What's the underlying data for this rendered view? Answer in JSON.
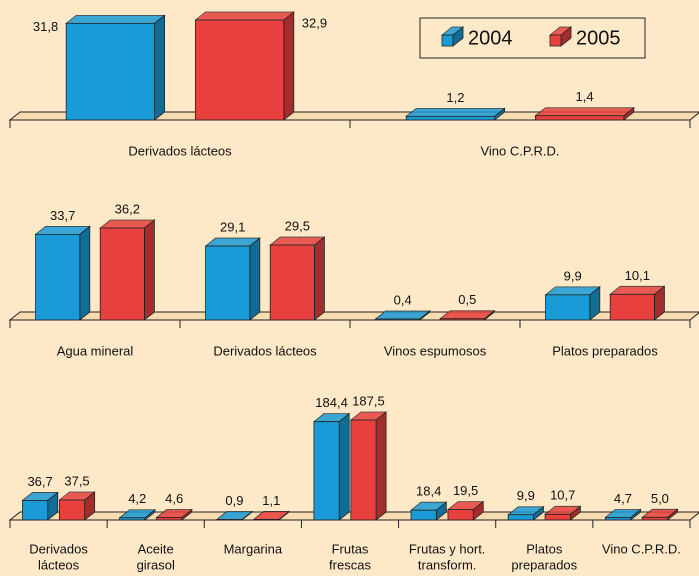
{
  "chart_data": [
    {
      "type": "bar3d",
      "categories": [
        [
          "Derivados lácteos"
        ],
        [
          "Vino C.P.R.D."
        ]
      ],
      "series": [
        {
          "name": "2004",
          "color": "#1a9ad6",
          "values": [
            31.8,
            1.2
          ],
          "value_labels": [
            "31,8",
            "1,2"
          ]
        },
        {
          "name": "2005",
          "color": "#e8403f",
          "values": [
            32.9,
            1.4
          ],
          "value_labels": [
            "32,9",
            "1,4"
          ]
        }
      ],
      "legend": "top-right"
    },
    {
      "type": "bar3d",
      "categories": [
        [
          "Agua mineral"
        ],
        [
          "Derivados lácteos"
        ],
        [
          "Vinos espumosos"
        ],
        [
          "Platos preparados"
        ]
      ],
      "series": [
        {
          "name": "2004",
          "color": "#1a9ad6",
          "values": [
            33.7,
            29.1,
            0.4,
            9.9
          ],
          "value_labels": [
            "33,7",
            "29,1",
            "0,4",
            "9,9"
          ]
        },
        {
          "name": "2005",
          "color": "#e8403f",
          "values": [
            36.2,
            29.5,
            0.5,
            10.1
          ],
          "value_labels": [
            "36,2",
            "29,5",
            "0,5",
            "10,1"
          ]
        }
      ]
    },
    {
      "type": "bar3d",
      "categories": [
        [
          "Derivados",
          "lácteos"
        ],
        [
          "Aceite",
          "girasol"
        ],
        [
          "Margarina"
        ],
        [
          "Frutas",
          "frescas"
        ],
        [
          "Frutas y hort.",
          "transform."
        ],
        [
          "Platos",
          "preparados"
        ],
        [
          "Vino C.P.R.D."
        ]
      ],
      "series": [
        {
          "name": "2004",
          "color": "#1a9ad6",
          "values": [
            36.7,
            4.2,
            0.9,
            184.4,
            18.4,
            9.9,
            4.7
          ],
          "value_labels": [
            "36,7",
            "4,2",
            "0,9",
            "184,4",
            "18,4",
            "9,9",
            "4,7"
          ]
        },
        {
          "name": "2005",
          "color": "#e8403f",
          "values": [
            37.5,
            4.6,
            1.1,
            187.5,
            19.5,
            10.7,
            5.0
          ],
          "value_labels": [
            "37,5",
            "4,6",
            "1,1",
            "187,5",
            "19,5",
            "10,7",
            "5,0"
          ]
        }
      ]
    }
  ]
}
